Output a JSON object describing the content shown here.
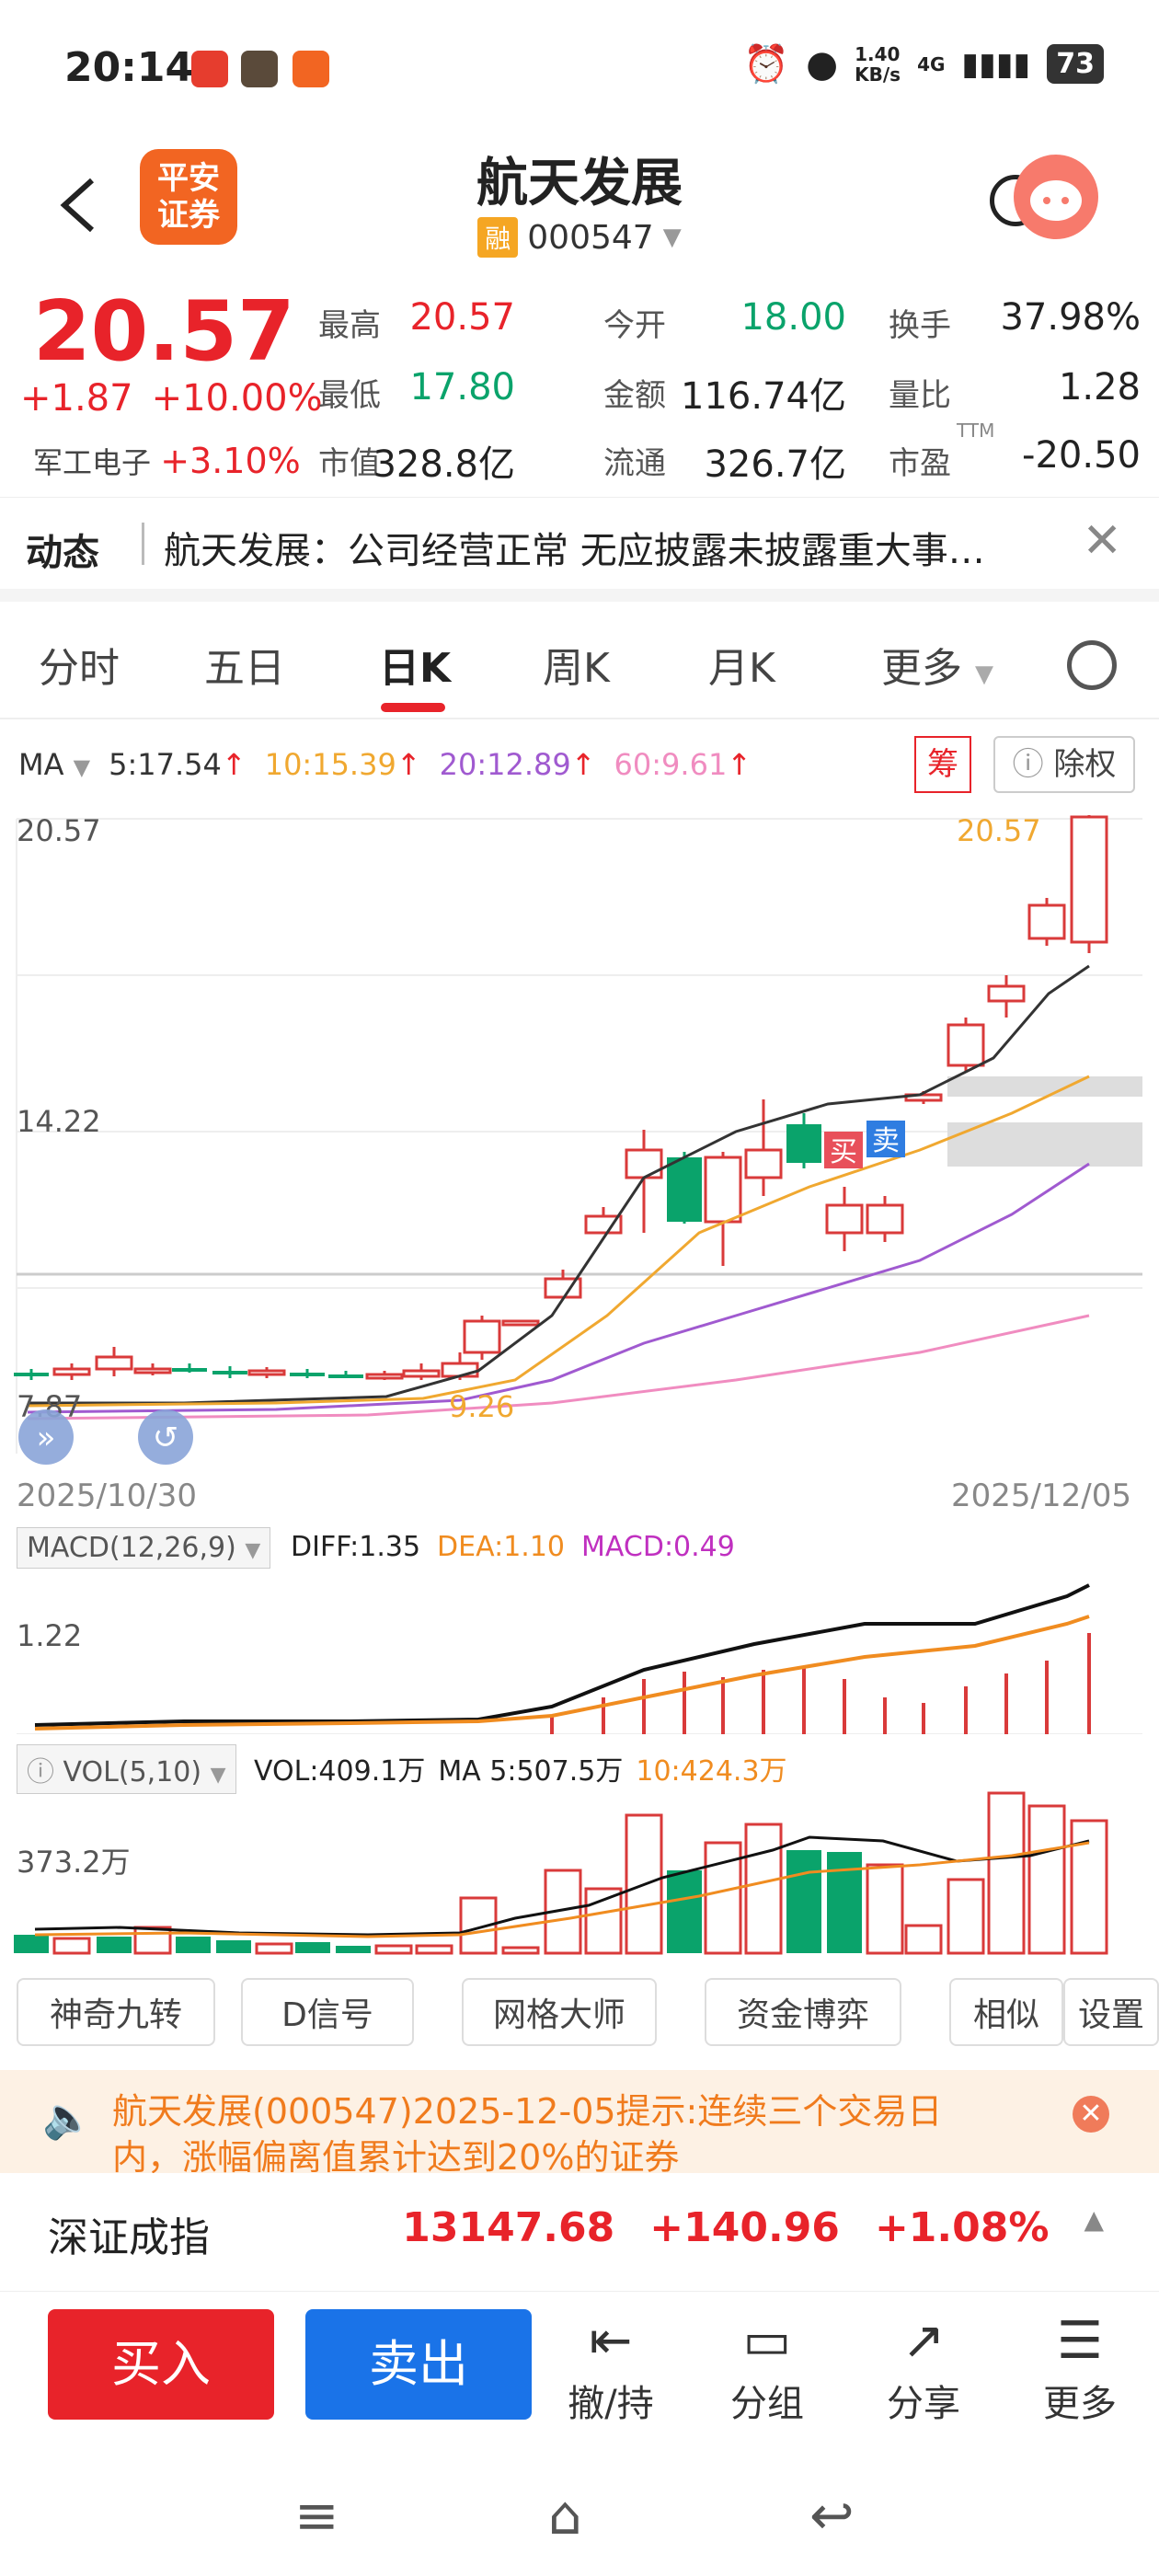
{
  "status_bar": {
    "time": "20:14",
    "speed": "1.40\nKB/s",
    "network": "4G",
    "battery": "73"
  },
  "header": {
    "back_label": "<",
    "logo_text": "平安\n证券",
    "stock_name": "航天发展",
    "badge": "融",
    "stock_code": "000547"
  },
  "quote": {
    "price": "20.57",
    "change": "+1.87",
    "change_pct": "+10.00%",
    "sector_name": "军工电子",
    "sector_pct": "+3.10%",
    "cells": [
      {
        "label": "最高",
        "value": "20.57",
        "color": "red"
      },
      {
        "label": "今开",
        "value": "18.00",
        "color": "green"
      },
      {
        "label": "换手",
        "value": "37.98%",
        "color": "dark"
      },
      {
        "label": "最低",
        "value": "17.80",
        "color": "green"
      },
      {
        "label": "金额",
        "value": "116.74亿",
        "color": "dark"
      },
      {
        "label": "量比",
        "value": "1.28",
        "color": "dark"
      },
      {
        "label": "市值",
        "value": "328.8亿",
        "color": "dark"
      },
      {
        "label": "流通",
        "value": "326.7亿",
        "color": "dark"
      },
      {
        "label": "市盈",
        "value": "-20.50",
        "color": "dark",
        "sup": "TTM"
      }
    ]
  },
  "news": {
    "tag": "动态",
    "text": "航天发展：公司经营正常 无应披露未披露重大事…",
    "close": "✕"
  },
  "tabs": [
    "分时",
    "五日",
    "日K",
    "周K",
    "月K",
    "更多"
  ],
  "active_tab": "日K",
  "ma": {
    "label": "MA",
    "ma5": "5:17.54",
    "ma10": "10:15.39",
    "ma20": "20:12.89",
    "ma60": "60:9.61"
  },
  "chart_buttons": {
    "chou": "筹",
    "chuquan": "除权"
  },
  "kline": {
    "y_top": "20.57",
    "y_mid": "14.22",
    "y_low": "7.87",
    "date_start": "2025/10/30",
    "date_end": "2025/12/05",
    "high_label": "20.57",
    "low_label": "9.26",
    "buy_marker": "买",
    "sell_marker": "卖"
  },
  "macd": {
    "label": "MACD(12,26,9)",
    "diff": "DIFF:1.35",
    "dea": "DEA:1.10",
    "macd": "MACD:0.49",
    "y_label": "1.22"
  },
  "vol": {
    "label": "VOL(5,10)",
    "vol": "VOL:409.1万",
    "ma5": "MA 5:507.5万",
    "ma10": "10:424.3万",
    "y_label": "373.2万"
  },
  "indicators": [
    "神奇九转",
    "D信号",
    "网格大师",
    "资金博弈",
    "相似",
    "设置"
  ],
  "notice": {
    "text": "航天发展(000547)2025-12-05提示:连续三个交易日内，涨幅偏离值累计达到20%的证券"
  },
  "index": {
    "name": "深证成指",
    "value": "13147.68",
    "change": "+140.96",
    "pct": "+1.08%"
  },
  "actions": {
    "buy": "买入",
    "sell": "卖出",
    "cancel": "撤/持",
    "group": "分组",
    "share": "分享",
    "more": "更多"
  },
  "colors": {
    "up": "#e8232a",
    "down": "#0aa36b",
    "ma5": "#333333",
    "ma10": "#f0a830",
    "ma20": "#a05ad0",
    "ma60": "#f08cc0",
    "accent": "#f26522"
  }
}
